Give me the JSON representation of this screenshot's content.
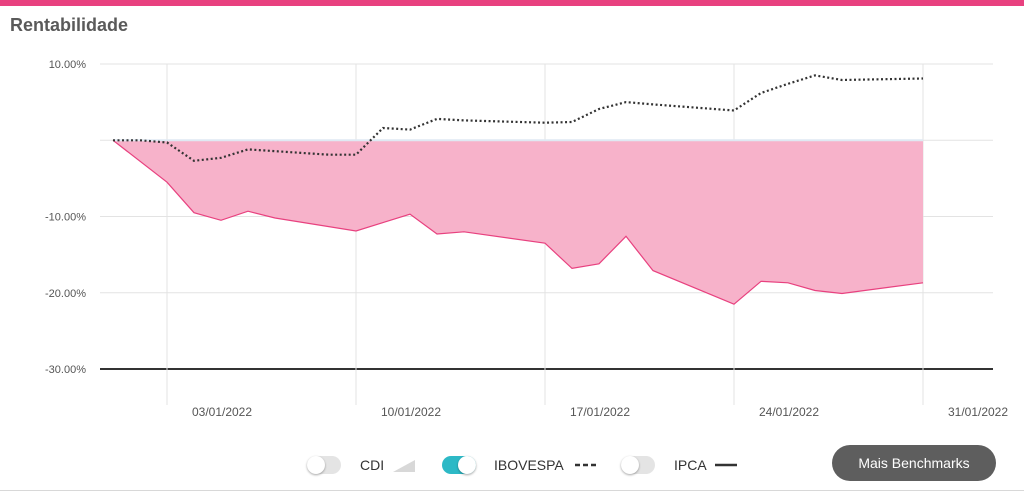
{
  "header": {
    "title": "Rentabilidade"
  },
  "colors": {
    "accent": "#e8417f",
    "area_fill": "#f7b2ca",
    "area_line": "#e8417f",
    "ibov_line": "#333333",
    "toggle_on": "#2db9c6"
  },
  "chart_data": {
    "type": "area",
    "xlabel": "",
    "ylabel": "",
    "x_ticks": [
      "03/01/2022",
      "10/01/2022",
      "17/01/2022",
      "24/01/2022",
      "31/01/2022"
    ],
    "y_ticks": [
      "10.00%",
      "-10.00%",
      "-20.00%",
      "-30.00%"
    ],
    "y_tick_values": [
      10,
      -10,
      -20,
      -30
    ],
    "ylim": [
      -30,
      10
    ],
    "xlim": [
      "2022-01-01",
      "2022-01-31"
    ],
    "grid": true,
    "series": [
      {
        "style": "area",
        "x": [
          "2022-01-01",
          "2022-01-03",
          "2022-01-04",
          "2022-01-05",
          "2022-01-06",
          "2022-01-07",
          "2022-01-10",
          "2022-01-11",
          "2022-01-12",
          "2022-01-13",
          "2022-01-14",
          "2022-01-17",
          "2022-01-18",
          "2022-01-19",
          "2022-01-20",
          "2022-01-21",
          "2022-01-24",
          "2022-01-25",
          "2022-01-26",
          "2022-01-27",
          "2022-01-28",
          "2022-01-31"
        ],
        "values": [
          0,
          -5.5,
          -9.5,
          -10.5,
          -9.3,
          -10.2,
          -11.9,
          -10.8,
          -9.7,
          -12.3,
          -12.0,
          -13.5,
          -16.8,
          -16.2,
          -12.6,
          -17.1,
          -21.5,
          -18.5,
          -18.7,
          -19.7,
          -20.1,
          -18.7
        ]
      },
      {
        "name": "IBOVESPA",
        "style": "dotted",
        "x": [
          "2022-01-01",
          "2022-01-02",
          "2022-01-03",
          "2022-01-04",
          "2022-01-05",
          "2022-01-06",
          "2022-01-09",
          "2022-01-10",
          "2022-01-11",
          "2022-01-12",
          "2022-01-13",
          "2022-01-14",
          "2022-01-17",
          "2022-01-18",
          "2022-01-19",
          "2022-01-20",
          "2022-01-21",
          "2022-01-24",
          "2022-01-25",
          "2022-01-26",
          "2022-01-27",
          "2022-01-28",
          "2022-01-31"
        ],
        "values": [
          0,
          0,
          -0.3,
          -2.7,
          -2.3,
          -1.2,
          -1.9,
          -1.9,
          1.6,
          1.4,
          2.8,
          2.6,
          2.3,
          2.4,
          4.1,
          5.0,
          4.7,
          3.9,
          6.2,
          7.4,
          8.5,
          7.9,
          8.1
        ]
      }
    ]
  },
  "legend": {
    "cdi": {
      "label": "CDI",
      "on": false
    },
    "ibovespa": {
      "label": "IBOVESPA",
      "on": true
    },
    "ipca": {
      "label": "IPCA",
      "on": false
    }
  },
  "buttons": {
    "more_benchmarks": "Mais Benchmarks"
  }
}
